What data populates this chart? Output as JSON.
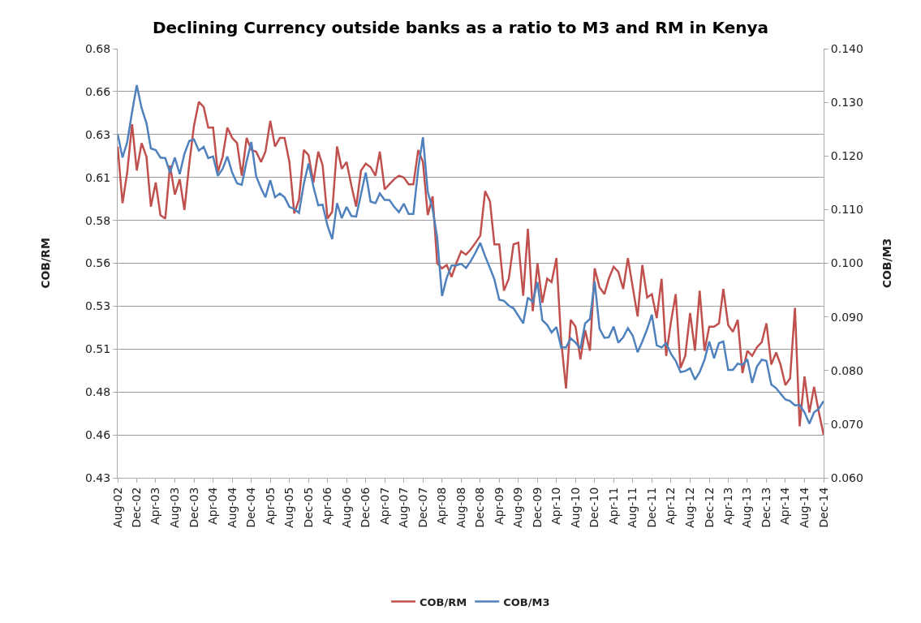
{
  "chart_data": {
    "type": "line",
    "title": "Declining Currency outside banks as a ratio to M3 and RM in Kenya",
    "ylabel": "COB/RM",
    "y2label": "COB/M3",
    "x": [
      "2002-08",
      "2002-09",
      "2002-10",
      "2002-11",
      "2002-12",
      "2003-01",
      "2003-02",
      "2003-03",
      "2003-04",
      "2003-05",
      "2003-06",
      "2003-07",
      "2003-08",
      "2003-09",
      "2003-10",
      "2003-11",
      "2003-12",
      "2004-01",
      "2004-02",
      "2004-03",
      "2004-04",
      "2004-05",
      "2004-06",
      "2004-07",
      "2004-08",
      "2004-09",
      "2004-10",
      "2004-11",
      "2004-12",
      "2005-01",
      "2005-02",
      "2005-03",
      "2005-04",
      "2005-05",
      "2005-06",
      "2005-07",
      "2005-08",
      "2005-09",
      "2005-10",
      "2005-11",
      "2005-12",
      "2006-01",
      "2006-02",
      "2006-03",
      "2006-04",
      "2006-05",
      "2006-06",
      "2006-07",
      "2006-08",
      "2006-09",
      "2006-10",
      "2006-11",
      "2006-12",
      "2007-01",
      "2007-02",
      "2007-03",
      "2007-04",
      "2007-05",
      "2007-06",
      "2007-07",
      "2007-08",
      "2007-09",
      "2007-10",
      "2007-11",
      "2007-12",
      "2008-01",
      "2008-02",
      "2008-03",
      "2008-04",
      "2008-05",
      "2008-06",
      "2008-07",
      "2008-08",
      "2008-09",
      "2008-10",
      "2008-11",
      "2008-12",
      "2009-01",
      "2009-02",
      "2009-03",
      "2009-04",
      "2009-05",
      "2009-06",
      "2009-07",
      "2009-08",
      "2009-09",
      "2009-10",
      "2009-11",
      "2009-12",
      "2010-01",
      "2010-02",
      "2010-03",
      "2010-04",
      "2010-05",
      "2010-06",
      "2010-07",
      "2010-08",
      "2010-09",
      "2010-10",
      "2010-11",
      "2010-12",
      "2011-01",
      "2011-02",
      "2011-03",
      "2011-04",
      "2011-05",
      "2011-06",
      "2011-07",
      "2011-08",
      "2011-09",
      "2011-10",
      "2011-11",
      "2011-12",
      "2012-01",
      "2012-02",
      "2012-03",
      "2012-04",
      "2012-05",
      "2012-06",
      "2012-07",
      "2012-08",
      "2012-09",
      "2012-10",
      "2012-11",
      "2012-12",
      "2013-01",
      "2013-02",
      "2013-03",
      "2013-04",
      "2013-05",
      "2013-06",
      "2013-07",
      "2013-08",
      "2013-09",
      "2013-10",
      "2013-11",
      "2013-12",
      "2014-01",
      "2014-02",
      "2014-03",
      "2014-04",
      "2014-05",
      "2014-06",
      "2014-07",
      "2014-08",
      "2014-09",
      "2014-10",
      "2014-11",
      "2014-12"
    ],
    "series": [
      {
        "name": "COB/RM",
        "color": "#c0504d",
        "values": [
          0.623,
          0.59,
          0.608,
          0.636,
          0.609,
          0.625,
          0.617,
          0.588,
          0.602,
          0.583,
          0.581,
          0.612,
          0.595,
          0.604,
          0.586,
          0.613,
          0.635,
          0.649,
          0.646,
          0.634,
          0.634,
          0.608,
          0.617,
          0.634,
          0.628,
          0.625,
          0.606,
          0.628,
          0.621,
          0.62,
          0.614,
          0.62,
          0.638,
          0.623,
          0.628,
          0.628,
          0.614,
          0.584,
          0.592,
          0.621,
          0.618,
          0.602,
          0.62,
          0.612,
          0.581,
          0.585,
          0.623,
          0.61,
          0.614,
          0.6,
          0.588,
          0.609,
          0.613,
          0.611,
          0.606,
          0.62,
          0.598,
          0.601,
          0.604,
          0.606,
          0.605,
          0.601,
          0.601,
          0.621,
          0.614,
          0.583,
          0.594,
          0.555,
          0.552,
          0.554,
          0.547,
          0.555,
          0.562,
          0.56,
          0.563,
          0.567,
          0.571,
          0.597,
          0.591,
          0.566,
          0.566,
          0.539,
          0.546,
          0.566,
          0.567,
          0.536,
          0.575,
          0.527,
          0.555,
          0.532,
          0.546,
          0.544,
          0.558,
          0.51,
          0.482,
          0.522,
          0.518,
          0.499,
          0.516,
          0.504,
          0.552,
          0.541,
          0.537,
          0.546,
          0.553,
          0.55,
          0.54,
          0.558,
          0.541,
          0.524,
          0.554,
          0.535,
          0.537,
          0.523,
          0.546,
          0.501,
          0.521,
          0.537,
          0.494,
          0.501,
          0.526,
          0.504,
          0.539,
          0.504,
          0.518,
          0.518,
          0.52,
          0.54,
          0.519,
          0.515,
          0.522,
          0.491,
          0.504,
          0.501,
          0.506,
          0.509,
          0.52,
          0.496,
          0.503,
          0.496,
          0.484,
          0.488,
          0.529,
          0.46,
          0.489,
          0.468,
          0.483,
          0.468,
          0.455
        ]
      },
      {
        "name": "COB/M3",
        "color": "#4f81bd",
        "axis": "y2",
        "values": [
          0.1241,
          0.1197,
          0.1226,
          0.1282,
          0.1332,
          0.1289,
          0.1261,
          0.1214,
          0.1211,
          0.1197,
          0.1196,
          0.1169,
          0.1197,
          0.1166,
          0.1204,
          0.1228,
          0.1231,
          0.121,
          0.1217,
          0.1196,
          0.1199,
          0.1163,
          0.1176,
          0.1199,
          0.1169,
          0.1149,
          0.1146,
          0.119,
          0.1226,
          0.1162,
          0.114,
          0.1123,
          0.1155,
          0.1123,
          0.113,
          0.1123,
          0.1105,
          0.1101,
          0.1094,
          0.1148,
          0.1186,
          0.1143,
          0.1108,
          0.1109,
          0.107,
          0.1045,
          0.1112,
          0.1084,
          0.1105,
          0.1088,
          0.1087,
          0.1129,
          0.1169,
          0.1115,
          0.1112,
          0.113,
          0.1118,
          0.1118,
          0.1105,
          0.1095,
          0.1111,
          0.1092,
          0.1092,
          0.1176,
          0.1235,
          0.1133,
          0.1101,
          0.1048,
          0.0939,
          0.0973,
          0.0996,
          0.0996,
          0.0999,
          0.0991,
          0.1004,
          0.102,
          0.1038,
          0.1013,
          0.0991,
          0.097,
          0.0932,
          0.093,
          0.0921,
          0.0916,
          0.0902,
          0.0888,
          0.0936,
          0.0928,
          0.0965,
          0.0894,
          0.0885,
          0.0871,
          0.0881,
          0.0843,
          0.0843,
          0.086,
          0.0852,
          0.0841,
          0.0888,
          0.0896,
          0.0966,
          0.0878,
          0.0861,
          0.0862,
          0.0882,
          0.0852,
          0.0862,
          0.0879,
          0.0865,
          0.0834,
          0.0854,
          0.0877,
          0.0904,
          0.0847,
          0.0843,
          0.0851,
          0.0831,
          0.0818,
          0.0797,
          0.0799,
          0.0804,
          0.0783,
          0.0797,
          0.082,
          0.0854,
          0.0823,
          0.0851,
          0.0854,
          0.0801,
          0.0801,
          0.0813,
          0.081,
          0.0821,
          0.0777,
          0.0807,
          0.082,
          0.0818,
          0.0774,
          0.0767,
          0.0757,
          0.0746,
          0.0743,
          0.0735,
          0.0736,
          0.0722,
          0.0701,
          0.0722,
          0.0729,
          0.0743
        ]
      }
    ],
    "xlim": [
      "2002-08",
      "2014-12"
    ],
    "xticks": [
      {
        "value": "2002-08",
        "label": "Aug-02"
      },
      {
        "value": "2002-12",
        "label": "Dec-02"
      },
      {
        "value": "2003-04",
        "label": "Apr-03"
      },
      {
        "value": "2003-08",
        "label": "Aug-03"
      },
      {
        "value": "2003-12",
        "label": "Dec-03"
      },
      {
        "value": "2004-04",
        "label": "Apr-04"
      },
      {
        "value": "2004-08",
        "label": "Aug-04"
      },
      {
        "value": "2004-12",
        "label": "Dec-04"
      },
      {
        "value": "2005-04",
        "label": "Apr-05"
      },
      {
        "value": "2005-08",
        "label": "Aug-05"
      },
      {
        "value": "2005-12",
        "label": "Dec-05"
      },
      {
        "value": "2006-04",
        "label": "Apr-06"
      },
      {
        "value": "2006-08",
        "label": "Aug-06"
      },
      {
        "value": "2006-12",
        "label": "Dec-06"
      },
      {
        "value": "2007-04",
        "label": "Apr-07"
      },
      {
        "value": "2007-08",
        "label": "Aug-07"
      },
      {
        "value": "2007-12",
        "label": "Dec-07"
      },
      {
        "value": "2008-04",
        "label": "Apr-08"
      },
      {
        "value": "2008-08",
        "label": "Aug-08"
      },
      {
        "value": "2008-12",
        "label": "Dec-08"
      },
      {
        "value": "2009-04",
        "label": "Apr-09"
      },
      {
        "value": "2009-08",
        "label": "Aug-09"
      },
      {
        "value": "2009-12",
        "label": "Dec-09"
      },
      {
        "value": "2010-04",
        "label": "Apr-10"
      },
      {
        "value": "2010-08",
        "label": "Aug-10"
      },
      {
        "value": "2010-12",
        "label": "Dec-10"
      },
      {
        "value": "2011-04",
        "label": "Apr-11"
      },
      {
        "value": "2011-08",
        "label": "Aug-11"
      },
      {
        "value": "2011-12",
        "label": "Dec-11"
      },
      {
        "value": "2012-04",
        "label": "Apr-12"
      },
      {
        "value": "2012-08",
        "label": "Aug-12"
      },
      {
        "value": "2012-12",
        "label": "Dec-12"
      },
      {
        "value": "2013-04",
        "label": "Apr-13"
      },
      {
        "value": "2013-08",
        "label": "Aug-13"
      },
      {
        "value": "2013-12",
        "label": "Dec-13"
      },
      {
        "value": "2014-04",
        "label": "Apr-14"
      },
      {
        "value": "2014-08",
        "label": "Aug-14"
      },
      {
        "value": "2014-12",
        "label": "Dec-14"
      }
    ],
    "ylim": [
      0.43,
      0.68
    ],
    "yticks": [
      0.43,
      {
        "value": 0.455,
        "label": "0.46"
      },
      0.48,
      {
        "value": 0.505,
        "label": "0.51"
      },
      0.53,
      {
        "value": 0.555,
        "label": "0.56"
      },
      0.58,
      {
        "value": 0.605,
        "label": "0.61"
      },
      0.63,
      {
        "value": 0.655,
        "label": "0.66"
      },
      0.68
    ],
    "y2lim": [
      0.06,
      0.14
    ],
    "y2ticks": [
      {
        "value": 0.06,
        "label": "0.060"
      },
      {
        "value": 0.07,
        "label": "0.070"
      },
      {
        "value": 0.08,
        "label": "0.080"
      },
      {
        "value": 0.09,
        "label": "0.090"
      },
      {
        "value": 0.1,
        "label": "0.100"
      },
      {
        "value": 0.11,
        "label": "0.110"
      },
      {
        "value": 0.12,
        "label": "0.120"
      },
      {
        "value": 0.13,
        "label": "0.130"
      },
      {
        "value": 0.14,
        "label": "0.140"
      }
    ],
    "grid": "y",
    "legend": "bottom",
    "line_style": "solid",
    "marker": "none"
  }
}
